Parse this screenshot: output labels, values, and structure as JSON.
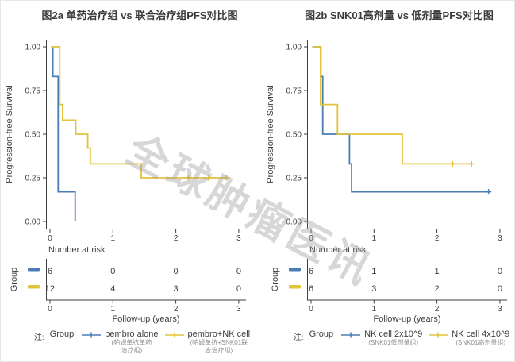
{
  "watermark": "全球肿瘤医讯",
  "colors": {
    "blue": "#4a7db5",
    "yellow": "#e3c33c",
    "axis": "#3f3f3f",
    "text": "#3f3f3f",
    "subtext": "#8f8f8f"
  },
  "chart_data": [
    {
      "type": "line",
      "subtype": "kaplan-meier-step",
      "title": "图2a  单药治疗组 vs 联合治疗组PFS对比图",
      "xlabel": "Follow-up (years)",
      "ylabel": "Progression-free Survival",
      "xlim": [
        0,
        3.1
      ],
      "ylim": [
        0,
        1
      ],
      "xticks": [
        0,
        1,
        2,
        3
      ],
      "yticks": [
        1.0,
        0.75,
        0.5,
        0.25,
        0.0
      ],
      "grid": false,
      "legend_position": "bottom",
      "series": [
        {
          "name": "pembro alone",
          "color": "blue",
          "points": [
            [
              0.02,
              1.0
            ],
            [
              0.045,
              1.0
            ],
            [
              0.045,
              0.83
            ],
            [
              0.13,
              0.83
            ],
            [
              0.13,
              0.17
            ],
            [
              0.4,
              0.17
            ],
            [
              0.4,
              0.0
            ]
          ],
          "censors": []
        },
        {
          "name": "pembro+NK cell",
          "color": "yellow",
          "points": [
            [
              0.02,
              1.0
            ],
            [
              0.155,
              1.0
            ],
            [
              0.155,
              0.67
            ],
            [
              0.2,
              0.67
            ],
            [
              0.2,
              0.58
            ],
            [
              0.41,
              0.58
            ],
            [
              0.41,
              0.5
            ],
            [
              0.6,
              0.5
            ],
            [
              0.6,
              0.42
            ],
            [
              0.64,
              0.42
            ],
            [
              0.64,
              0.33
            ],
            [
              1.45,
              0.33
            ],
            [
              1.45,
              0.25
            ],
            [
              2.8,
              0.25
            ]
          ],
          "censors": [
            [
              2.2,
              0.25
            ],
            [
              2.52,
              0.25
            ],
            [
              2.8,
              0.25
            ]
          ]
        }
      ],
      "number_at_risk": {
        "header": "Number at risk",
        "group_label": "Group",
        "times": [
          0,
          1,
          2,
          3
        ],
        "rows": [
          {
            "series": "pembro alone",
            "color": "blue",
            "counts": [
              6,
              0,
              0,
              0
            ]
          },
          {
            "series": "pembro+NK cell",
            "color": "yellow",
            "counts": [
              12,
              4,
              3,
              0
            ]
          }
        ]
      },
      "legend": {
        "note": "注:",
        "group_label": "Group",
        "entries": [
          {
            "color": "blue",
            "label": "pembro alone",
            "sub1": "(帕姆单抗单药",
            "sub2": "治疗组)"
          },
          {
            "color": "yellow",
            "label": "pembro+NK cell",
            "sub1": "(帕姆单抗+SNK01联",
            "sub2": "合治疗组)"
          }
        ]
      }
    },
    {
      "type": "line",
      "subtype": "kaplan-meier-step",
      "title": "图2b  SNK01高剂量 vs 低剂量PFS对比图",
      "xlabel": "Follow-up (years)",
      "ylabel": "Progression-free Survival",
      "xlim": [
        0,
        3.1
      ],
      "ylim": [
        0,
        1
      ],
      "xticks": [
        0,
        1,
        2,
        3
      ],
      "yticks": [
        1.0,
        0.75,
        0.5,
        0.25,
        0.0
      ],
      "grid": false,
      "legend_position": "bottom",
      "series": [
        {
          "name": "NK cell 2x10^9",
          "color": "blue",
          "points": [
            [
              0.02,
              1.0
            ],
            [
              0.155,
              1.0
            ],
            [
              0.155,
              0.83
            ],
            [
              0.185,
              0.83
            ],
            [
              0.185,
              0.5
            ],
            [
              0.61,
              0.5
            ],
            [
              0.61,
              0.33
            ],
            [
              0.645,
              0.33
            ],
            [
              0.645,
              0.17
            ],
            [
              2.82,
              0.17
            ]
          ],
          "censors": [
            [
              2.82,
              0.17
            ]
          ]
        },
        {
          "name": "NK cell 4x10^9",
          "color": "yellow",
          "points": [
            [
              0.02,
              1.0
            ],
            [
              0.15,
              1.0
            ],
            [
              0.15,
              0.67
            ],
            [
              0.42,
              0.67
            ],
            [
              0.42,
              0.5
            ],
            [
              1.45,
              0.5
            ],
            [
              1.45,
              0.33
            ],
            [
              2.55,
              0.33
            ]
          ],
          "censors": [
            [
              2.25,
              0.33
            ],
            [
              2.55,
              0.33
            ]
          ]
        }
      ],
      "number_at_risk": {
        "header": "Number at risk",
        "group_label": "Group",
        "times": [
          0,
          1,
          2,
          3
        ],
        "rows": [
          {
            "series": "NK cell 2x10^9",
            "color": "blue",
            "counts": [
              6,
              1,
              1,
              0
            ]
          },
          {
            "series": "NK cell 4x10^9",
            "color": "yellow",
            "counts": [
              6,
              3,
              2,
              0
            ]
          }
        ]
      },
      "legend": {
        "note": "注:",
        "group_label": "Group",
        "entries": [
          {
            "color": "blue",
            "label": "NK cell 2x10^9",
            "sub1": "(SNK01低剂量组)",
            "sub2": ""
          },
          {
            "color": "yellow",
            "label": "NK cell 4x10^9",
            "sub1": "(SNK01高剂量组)",
            "sub2": ""
          }
        ]
      }
    }
  ]
}
